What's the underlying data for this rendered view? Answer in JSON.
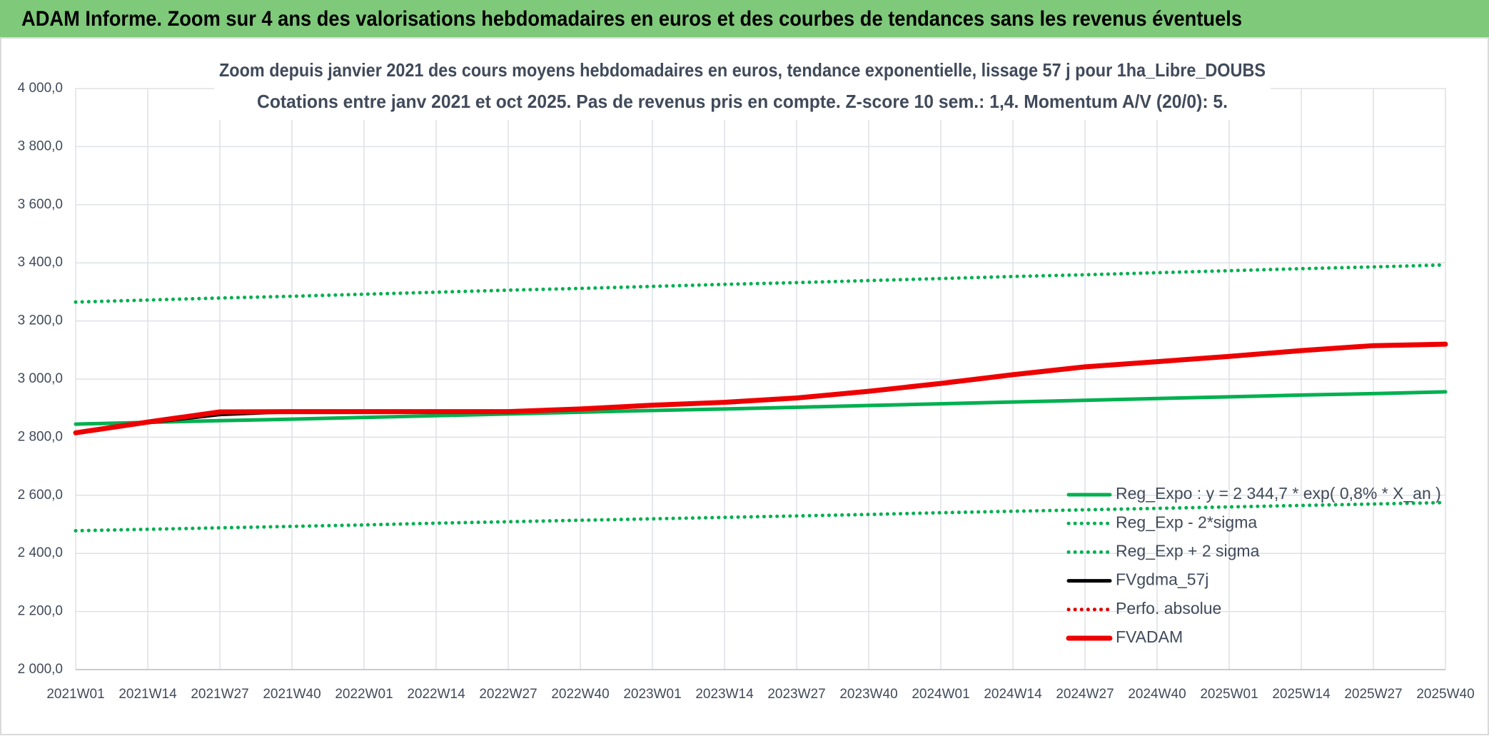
{
  "header": {
    "title": "ADAM Informe. Zoom sur 4 ans des valorisations hebdomadaires en euros et des courbes de tendances sans les revenus éventuels"
  },
  "chart_data": {
    "type": "line",
    "title": "Zoom depuis janvier 2021 des cours moyens hebdomadaires en euros, tendance exponentielle, lissage 57 j pour 1ha_Libre_DOUBS",
    "subtitle": "Cotations entre janv 2021 et oct 2025. Pas de revenus pris en compte. Z-score 10 sem.: 1,4. Momentum A/V (20/0): 5.",
    "categories": [
      "2021W01",
      "2021W14",
      "2021W27",
      "2021W40",
      "2022W01",
      "2022W14",
      "2022W27",
      "2022W40",
      "2023W01",
      "2023W14",
      "2023W27",
      "2023W40",
      "2024W01",
      "2024W14",
      "2024W27",
      "2024W40",
      "2025W01",
      "2025W14",
      "2025W27",
      "2025W40"
    ],
    "ylim": [
      2000,
      4000
    ],
    "yticks": [
      {
        "value": 2000,
        "label": "2 000,0"
      },
      {
        "value": 2200,
        "label": "2 200,0"
      },
      {
        "value": 2400,
        "label": "2 400,0"
      },
      {
        "value": 2600,
        "label": "2 600,0"
      },
      {
        "value": 2800,
        "label": "2 800,0"
      },
      {
        "value": 3000,
        "label": "3 000,0"
      },
      {
        "value": 3200,
        "label": "3 200,0"
      },
      {
        "value": 3400,
        "label": "3 400,0"
      },
      {
        "value": 3600,
        "label": "3 600,0"
      },
      {
        "value": 3800,
        "label": "3 800,0"
      },
      {
        "value": 4000,
        "label": "4 000,0"
      }
    ],
    "grid": true,
    "legend": "right",
    "series": [
      {
        "name": "Reg_Expo : y = 2 344,7 * exp( 0,8% * X_an )",
        "color": "#00b050",
        "style": "solid",
        "values": [
          2845,
          2851,
          2857,
          2862,
          2868,
          2874,
          2880,
          2886,
          2892,
          2897,
          2903,
          2909,
          2915,
          2921,
          2927,
          2933,
          2939,
          2945,
          2950,
          2956
        ]
      },
      {
        "name": "Reg_Exp - 2*sigma",
        "color": "#00b050",
        "style": "dotted",
        "values": [
          2478,
          2483,
          2488,
          2493,
          2498,
          2504,
          2509,
          2514,
          2519,
          2524,
          2529,
          2534,
          2540,
          2545,
          2550,
          2555,
          2560,
          2565,
          2570,
          2575
        ]
      },
      {
        "name": "Reg_Exp + 2 sigma",
        "color": "#00b050",
        "style": "dotted",
        "values": [
          3265,
          3272,
          3279,
          3285,
          3292,
          3299,
          3306,
          3312,
          3319,
          3326,
          3332,
          3339,
          3346,
          3353,
          3359,
          3366,
          3373,
          3380,
          3386,
          3393
        ]
      },
      {
        "name": "FVgdma_57j",
        "color": "#000000",
        "style": "solid",
        "values": [
          2815,
          2850,
          2878,
          2888,
          2888,
          2888,
          2888,
          2897,
          2910,
          2920,
          2935,
          2958,
          2985,
          3015,
          3042,
          3060,
          3078,
          3098,
          3115,
          3120
        ]
      },
      {
        "name": "Perfo. absolue",
        "color": "#e00000",
        "style": "dotted",
        "values": [
          null,
          null,
          null,
          null,
          null,
          null,
          null,
          null,
          null,
          null,
          null,
          null,
          null,
          null,
          null,
          null,
          null,
          null,
          null,
          null
        ]
      },
      {
        "name": "FVADAM",
        "color": "#ee0000",
        "style": "thick",
        "values": [
          2815,
          2852,
          2887,
          2888,
          2888,
          2888,
          2888,
          2897,
          2910,
          2920,
          2935,
          2958,
          2985,
          3015,
          3042,
          3060,
          3078,
          3098,
          3115,
          3120
        ]
      }
    ]
  }
}
